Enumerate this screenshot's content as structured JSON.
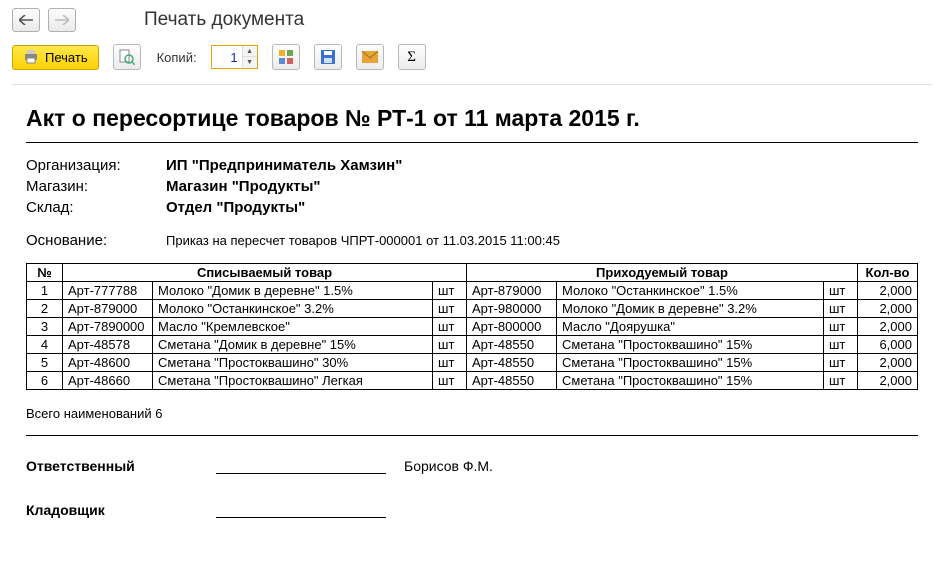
{
  "window": {
    "title": "Печать документа"
  },
  "toolbar": {
    "print_label": "Печать",
    "copies_label": "Копий:",
    "copies_value": "1"
  },
  "doc": {
    "title": "Акт о пересортице товаров № РТ-1 от 11 марта 2015 г.",
    "org_label": "Организация:",
    "org_value": "ИП \"Предприниматель Хамзин\"",
    "shop_label": "Магазин:",
    "shop_value": "Магазин \"Продукты\"",
    "store_label": "Склад:",
    "store_value": "Отдел \"Продукты\"",
    "basis_label": "Основание:",
    "basis_value": "Приказ на пересчет товаров ЧПРТ-000001 от 11.03.2015 11:00:45"
  },
  "table": {
    "columns": {
      "num": "№",
      "writeoff": "Списываемый товар",
      "incoming": "Приходуемый товар",
      "qty": "Кол-во"
    },
    "rows": [
      {
        "n": "1",
        "a1": "Арт-777788",
        "p1": "Молоко \"Домик в деревне\" 1.5%",
        "u1": "шт",
        "a2": "Арт-879000",
        "p2": "Молоко \"Останкинское\" 1.5%",
        "u2": "шт",
        "q": "2,000"
      },
      {
        "n": "2",
        "a1": "Арт-879000",
        "p1": "Молоко \"Останкинское\" 3.2%",
        "u1": "шт",
        "a2": "Арт-980000",
        "p2": "Молоко \"Домик в деревне\" 3.2%",
        "u2": "шт",
        "q": "2,000"
      },
      {
        "n": "3",
        "a1": "Арт-7890000",
        "p1": "Масло \"Кремлевское\"",
        "u1": "шт",
        "a2": "Арт-800000",
        "p2": "Масло \"Доярушка\"",
        "u2": "шт",
        "q": "2,000"
      },
      {
        "n": "4",
        "a1": "Арт-48578",
        "p1": "Сметана \"Домик в деревне\" 15%",
        "u1": "шт",
        "a2": "Арт-48550",
        "p2": "Сметана \"Простоквашино\" 15%",
        "u2": "шт",
        "q": "6,000"
      },
      {
        "n": "5",
        "a1": "Арт-48600",
        "p1": "Сметана \"Простоквашино\" 30%",
        "u1": "шт",
        "a2": "Арт-48550",
        "p2": "Сметана \"Простоквашино\" 15%",
        "u2": "шт",
        "q": "2,000"
      },
      {
        "n": "6",
        "a1": "Арт-48660",
        "p1": "Сметана \"Простоквашино\" Легкая",
        "u1": "шт",
        "a2": "Арт-48550",
        "p2": "Сметана \"Простоквашино\" 15%",
        "u2": "шт",
        "q": "2,000"
      }
    ]
  },
  "totals": {
    "text": "Всего наименований 6"
  },
  "signatures": {
    "responsible_label": "Ответственный",
    "responsible_name": "Борисов Ф.М.",
    "storekeeper_label": "Кладовщик"
  },
  "colors": {
    "print_btn_bg": "#ffe000",
    "save_icon": "#3b6fd0",
    "mail_icon": "#e6a436"
  }
}
